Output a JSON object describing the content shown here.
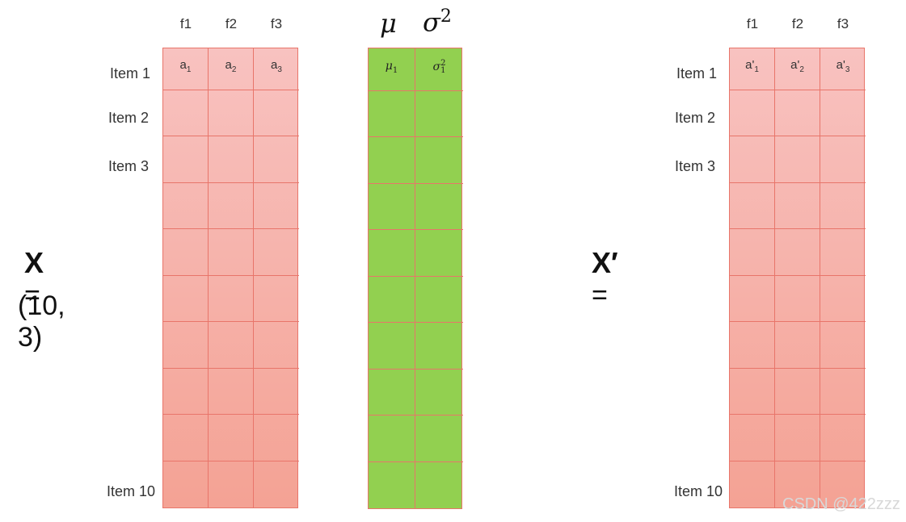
{
  "left_matrix": {
    "label_var": "X",
    "label_eq": "=",
    "shape": "(10, 3)",
    "headers": [
      "f1",
      "f2",
      "f3"
    ],
    "row_labels": [
      "Item 1",
      "Item 2",
      "Item 3",
      "Item 10"
    ],
    "first_row": [
      "a1",
      "a2",
      "a3"
    ],
    "first_row_parts": [
      [
        "a",
        "1"
      ],
      [
        "a",
        "2"
      ],
      [
        "a",
        "3"
      ]
    ]
  },
  "stats": {
    "headers": [
      "μ",
      "σ²"
    ],
    "header_parts": [
      [
        "μ",
        ""
      ],
      [
        "σ",
        "2"
      ]
    ],
    "first_row_parts": [
      [
        "μ",
        "1",
        ""
      ],
      [
        "σ",
        "1",
        "2"
      ]
    ],
    "fill_color": "#92d050"
  },
  "right_matrix": {
    "label_var": "X′",
    "label_eq": "=",
    "headers": [
      "f1",
      "f2",
      "f3"
    ],
    "row_labels": [
      "Item 1",
      "Item 2",
      "Item 3",
      "Item 10"
    ],
    "first_row_parts": [
      [
        "a'",
        "1"
      ],
      [
        "a'",
        "2"
      ],
      [
        "a'",
        "3"
      ]
    ]
  },
  "watermark": "CSDN @422zzz",
  "colors": {
    "matrix_top": "#f8c2c0",
    "matrix_bottom": "#f4a294",
    "grid_line": "#e8756a",
    "stats_fill": "#92d050"
  }
}
